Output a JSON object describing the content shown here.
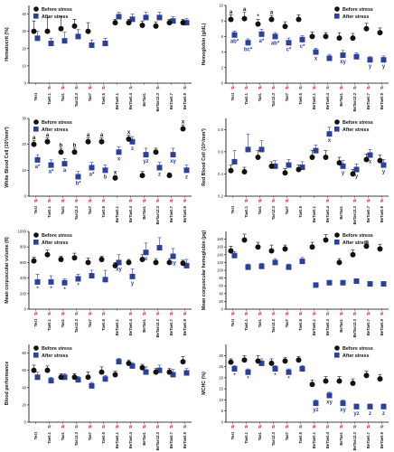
{
  "legend": {
    "before": "Before stress",
    "after": "After stress"
  },
  "colors": {
    "before": "#111111",
    "after": "#2b3f9c",
    "hash": "#e5292e"
  },
  "chart_data": [
    {
      "type": "scatter",
      "ylabel": "Hematocrit (%)",
      "categories": [
        "Test",
        "Tae0.1",
        "Tae1",
        "Tae12.3",
        "Tae7",
        "Tae0.5",
        "BeTae0.1",
        "BeTae0.4",
        "BeTae1",
        "BeTae12.3",
        "BeTae0.7",
        "BeTae0.9"
      ],
      "ylim": [
        0,
        45
      ],
      "yticks": [
        0,
        10,
        20,
        30,
        40
      ],
      "series": [
        {
          "name": "Before stress",
          "values": [
            30,
            30,
            31.5,
            33,
            30,
            null,
            35,
            35,
            33.5,
            33,
            35,
            35
          ],
          "err": [
            6,
            8,
            7,
            4,
            5,
            null,
            2,
            2,
            2.5,
            2.5,
            2,
            2
          ]
        },
        {
          "name": "After stress",
          "values": [
            26,
            23,
            24.5,
            27,
            22,
            23,
            38.5,
            37,
            38,
            38,
            36,
            35
          ],
          "err": [
            4,
            3,
            5,
            4,
            3,
            3,
            2.5,
            3,
            3,
            3,
            2.5,
            2.5
          ]
        }
      ],
      "hash_marks": [
        1,
        2,
        3,
        4,
        5,
        7,
        9,
        11
      ],
      "after_labels": [],
      "before_labels": []
    },
    {
      "type": "scatter",
      "ylabel": "Hemoglobin (g/dL)",
      "categories": [
        "Test",
        "Tae0.1",
        "Tae1",
        "Tae12.3",
        "Tae7",
        "Tae0.5",
        "BeTae0.1",
        "BeTae0.4",
        "BeTae1",
        "BeTae12.3",
        "BeTae0.7",
        "BeTae0.9"
      ],
      "ylim": [
        0,
        10
      ],
      "yticks": [
        0,
        2,
        4,
        6,
        8,
        10
      ],
      "series": [
        {
          "name": "Before stress",
          "values": [
            8.2,
            8.3,
            7.6,
            8.2,
            7.3,
            8.2,
            6,
            6,
            5.8,
            5.8,
            7,
            6.5
          ],
          "err": [
            0.6,
            0.8,
            0.6,
            0.5,
            0.6,
            0.6,
            0.6,
            0.5,
            0.7,
            0.6,
            0.7,
            0.6
          ]
        },
        {
          "name": "After stress",
          "values": [
            6.2,
            5.2,
            6.3,
            6,
            5.2,
            5.6,
            4,
            3.2,
            3.6,
            3.4,
            3,
            3
          ],
          "err": [
            0.5,
            0.5,
            0.6,
            0.5,
            0.6,
            0.5,
            0.5,
            0.5,
            0.6,
            0.5,
            0.4,
            0.5
          ]
        }
      ],
      "hash_marks": [
        0,
        1,
        2,
        3,
        4,
        5,
        6,
        7,
        8,
        9,
        10,
        11
      ],
      "after_labels": [
        {
          "i": 0,
          "text": "ab*"
        },
        {
          "i": 1,
          "text": "bc*"
        },
        {
          "i": 2,
          "text": "a*"
        },
        {
          "i": 3,
          "text": "ab*"
        },
        {
          "i": 4,
          "text": "c*"
        },
        {
          "i": 5,
          "text": "c*"
        },
        {
          "i": 6,
          "text": "x"
        },
        {
          "i": 8,
          "text": "xy"
        },
        {
          "i": 10,
          "text": "y"
        },
        {
          "i": 11,
          "text": "y"
        }
      ],
      "before_labels": [
        {
          "i": 0,
          "text": "a"
        },
        {
          "i": 1,
          "text": "a"
        },
        {
          "i": 2,
          "text": "*"
        },
        {
          "i": 3,
          "text": "a"
        }
      ]
    },
    {
      "type": "scatter",
      "ylabel": "White Blood Cell (10³/mm³)",
      "categories": [
        "Test",
        "Tae0.1",
        "Tae1",
        "Tae12.3",
        "Tae7",
        "Tae0.5",
        "BeTae0.1",
        "BeTae0.4",
        "BeTae1",
        "BeTae12.3",
        "BeTae0.7",
        "BeTae0.9"
      ],
      "ylim": [
        0,
        30
      ],
      "yticks": [
        0,
        10,
        20,
        30
      ],
      "series": [
        {
          "name": "Before stress",
          "values": [
            20,
            21,
            17,
            17,
            21,
            21,
            7,
            22,
            8,
            17,
            8,
            26
          ],
          "err": [
            1.5,
            1.5,
            1.5,
            1.5,
            1.5,
            1.5,
            1,
            1.5,
            1.5,
            1.5,
            1,
            1.5
          ]
        },
        {
          "name": "After stress",
          "values": [
            14,
            12,
            12.5,
            7.5,
            11,
            10,
            17,
            21,
            16,
            11,
            16,
            10
          ],
          "err": [
            2,
            2,
            2,
            2,
            2,
            2,
            2,
            2,
            2.5,
            2,
            2.5,
            2
          ]
        }
      ],
      "hash_marks": [
        0,
        1,
        2,
        3,
        4,
        5,
        7,
        8,
        9,
        10,
        11
      ],
      "after_labels": [
        {
          "i": 0,
          "text": "a*"
        },
        {
          "i": 1,
          "text": "a*"
        },
        {
          "i": 2,
          "text": "a"
        },
        {
          "i": 3,
          "text": "b*"
        },
        {
          "i": 4,
          "text": "a*"
        },
        {
          "i": 5,
          "text": "b"
        },
        {
          "i": 6,
          "text": "x"
        },
        {
          "i": 7,
          "text": "z"
        },
        {
          "i": 8,
          "text": "yz"
        },
        {
          "i": 9,
          "text": "z"
        },
        {
          "i": 10,
          "text": "xy"
        },
        {
          "i": 11,
          "text": "z"
        }
      ],
      "before_labels": [
        {
          "i": 0,
          "text": "a"
        },
        {
          "i": 1,
          "text": "a"
        },
        {
          "i": 2,
          "text": "b"
        },
        {
          "i": 3,
          "text": "b"
        },
        {
          "i": 4,
          "text": "a"
        },
        {
          "i": 5,
          "text": "a"
        },
        {
          "i": 6,
          "text": "x"
        },
        {
          "i": 7,
          "text": "x"
        },
        {
          "i": 11,
          "text": "x"
        }
      ]
    },
    {
      "type": "scatter",
      "ylabel": "Red Blood Cell (10⁶/mm³)",
      "categories": [
        "Test",
        "Tae0.1",
        "Tae1",
        "Tae12.3",
        "Tae7",
        "Tae0.5",
        "BeTae0.1",
        "BeTae0.4",
        "BeTae1",
        "BeTae12.3",
        "BeTae0.7",
        "BeTae0.9"
      ],
      "ylim": [
        0.2,
        0.9
      ],
      "yticks": [
        0.2,
        0.4,
        0.6,
        0.8
      ],
      "series": [
        {
          "name": "Before stress",
          "values": [
            0.43,
            0.42,
            0.55,
            0.47,
            0.41,
            0.44,
            0.55,
            0.55,
            0.5,
            0.4,
            0.53,
            0.52
          ],
          "err": [
            0.05,
            0.04,
            0.06,
            0.04,
            0.04,
            0.04,
            0.06,
            0.06,
            0.05,
            0.04,
            0.05,
            0.05
          ]
        },
        {
          "name": "After stress",
          "values": [
            0.51,
            0.62,
            0.62,
            0.47,
            0.48,
            0.46,
            0.61,
            0.76,
            0.47,
            0.44,
            0.57,
            0.48
          ],
          "err": [
            0.1,
            0.14,
            0.08,
            0.05,
            0.05,
            0.05,
            0.05,
            0.06,
            0.05,
            0.05,
            0.05,
            0.05
          ]
        }
      ],
      "hash_marks": [
        1,
        2,
        3,
        4,
        7,
        9,
        10,
        11
      ],
      "after_labels": [
        {
          "i": 7,
          "text": "x"
        },
        {
          "i": 8,
          "text": "y"
        },
        {
          "i": 9,
          "text": "y"
        },
        {
          "i": 10,
          "text": "x"
        },
        {
          "i": 11,
          "text": "y"
        }
      ],
      "before_labels": []
    },
    {
      "type": "scatter",
      "ylabel": "Mean corpuscular volume (fl)",
      "categories": [
        "Test",
        "Tae0.1",
        "Tae1",
        "Tae12.3",
        "Tae7",
        "Tae0.5",
        "BeTae0.1",
        "BeTae0.4",
        "BeTae1",
        "BeTae12.3",
        "BeTae0.7",
        "BeTae0.9"
      ],
      "ylim": [
        0,
        1000
      ],
      "yticks": [
        0,
        200,
        400,
        600,
        800,
        1000
      ],
      "series": [
        {
          "name": "Before stress",
          "values": [
            620,
            700,
            640,
            660,
            600,
            640,
            560,
            600,
            640,
            600,
            600,
            590
          ],
          "err": [
            50,
            60,
            40,
            60,
            60,
            40,
            40,
            40,
            60,
            50,
            50,
            40
          ]
        },
        {
          "name": "After stress",
          "values": [
            350,
            350,
            340,
            390,
            430,
            380,
            600,
            420,
            730,
            790,
            680,
            560
          ],
          "err": [
            100,
            80,
            50,
            60,
            70,
            120,
            100,
            100,
            120,
            130,
            100,
            80
          ]
        }
      ],
      "hash_marks": [
        0,
        1,
        2,
        3,
        4,
        5,
        7,
        8,
        9,
        10,
        11
      ],
      "after_labels": [
        {
          "i": 0,
          "text": "*"
        },
        {
          "i": 1,
          "text": "*"
        },
        {
          "i": 2,
          "text": "*"
        },
        {
          "i": 3,
          "text": "*"
        },
        {
          "i": 6,
          "text": "xy"
        },
        {
          "i": 7,
          "text": "y"
        },
        {
          "i": 8,
          "text": "x"
        },
        {
          "i": 10,
          "text": "xy"
        }
      ],
      "before_labels": []
    },
    {
      "type": "scatter",
      "ylabel": "Mean corpuscular hemoglobin (pg)",
      "categories": [
        "Test",
        "Tae0.1",
        "Tae1",
        "Tae12.3",
        "Tae7",
        "Tae0.5",
        "BeTae0.1",
        "BeTae0.4",
        "BeTae1",
        "BeTae12.3",
        "BeTae0.7",
        "BeTae0.9"
      ],
      "ylim": [
        0,
        200
      ],
      "yticks": [
        0,
        20,
        40,
        60,
        80,
        100,
        120,
        140,
        160,
        180
      ],
      "series": [
        {
          "name": "Before stress",
          "values": [
            150,
            178,
            160,
            150,
            155,
            null,
            160,
            178,
            120,
            140,
            162,
            155
          ],
          "err": [
            12,
            15,
            12,
            15,
            10,
            null,
            12,
            14,
            10,
            12,
            14,
            12
          ]
        },
        {
          "name": "After stress",
          "values": [
            138,
            108,
            110,
            120,
            108,
            123,
            62,
            68,
            68,
            72,
            65,
            65
          ],
          "err": [
            10,
            8,
            8,
            10,
            8,
            10,
            5,
            6,
            5,
            6,
            5,
            5
          ]
        }
      ],
      "hash_marks": [
        0,
        1,
        2,
        3,
        4,
        5,
        6,
        7,
        8,
        9,
        10,
        11
      ],
      "after_labels": [],
      "before_labels": []
    },
    {
      "type": "scatter",
      "ylabel": "Blood performance",
      "categories": [
        "Test",
        "Tae0.1",
        "Tae1",
        "Tae12.3",
        "Tae7",
        "Tae0.5",
        "BeTae0.1",
        "BeTae0.4",
        "BeTae1",
        "BeTae12.3",
        "BeTae0.7",
        "BeTae0.9"
      ],
      "ylim": [
        0,
        90
      ],
      "yticks": [
        0,
        20,
        40,
        60,
        80
      ],
      "series": [
        {
          "name": "Before stress",
          "values": [
            60,
            60,
            52,
            52,
            52,
            58,
            55,
            68,
            63,
            58,
            58,
            70
          ],
          "err": [
            6,
            5,
            4,
            4,
            6,
            6,
            4,
            4,
            4,
            4,
            4,
            6
          ]
        },
        {
          "name": "After stress",
          "values": [
            52,
            48,
            52,
            49,
            42,
            50,
            70,
            65,
            58,
            60,
            55,
            57
          ],
          "err": [
            6,
            4,
            4,
            4,
            4,
            4,
            4,
            4,
            6,
            6,
            6,
            5
          ]
        }
      ],
      "hash_marks": [
        1,
        2,
        3,
        4,
        5,
        6,
        7,
        8,
        9,
        10,
        11
      ],
      "after_labels": [],
      "before_labels": []
    },
    {
      "type": "scatter",
      "ylabel": "MCHC (%)",
      "categories": [
        "Test",
        "Tae0.1",
        "Tae1",
        "Tae12.3",
        "Tae7",
        "Tae0.5",
        "BeTae0.1",
        "BeTae0.4",
        "BeTae1",
        "BeTae12.3",
        "BeTae0.7",
        "BeTae0.9"
      ],
      "ylim": [
        0,
        35
      ],
      "yticks": [
        0,
        5,
        10,
        15,
        20,
        25,
        30
      ],
      "series": [
        {
          "name": "Before stress",
          "values": [
            27,
            28,
            27.5,
            26.5,
            27.5,
            28,
            17,
            18.5,
            18.5,
            17.5,
            21,
            19.5
          ],
          "err": [
            1.5,
            2,
            2.5,
            2,
            1.5,
            1.5,
            2,
            2,
            2,
            2,
            2,
            2
          ]
        },
        {
          "name": "After stress",
          "values": [
            24,
            22.5,
            26.5,
            24,
            22.5,
            24,
            8.5,
            12,
            8.5,
            7,
            7,
            7
          ],
          "err": [
            1.5,
            1.5,
            2,
            1.5,
            1.5,
            1.5,
            1.5,
            1.5,
            1.5,
            1.2,
            1.2,
            1.2
          ]
        }
      ],
      "hash_marks": [
        0,
        1,
        2,
        3,
        4,
        5,
        6,
        7,
        8,
        9,
        10,
        11
      ],
      "after_labels": [
        {
          "i": 0,
          "text": "*"
        },
        {
          "i": 1,
          "text": "*"
        },
        {
          "i": 3,
          "text": "*"
        },
        {
          "i": 4,
          "text": "*"
        },
        {
          "i": 6,
          "text": "yz"
        },
        {
          "i": 7,
          "text": "xy"
        },
        {
          "i": 8,
          "text": "xy"
        },
        {
          "i": 9,
          "text": "yz"
        },
        {
          "i": 10,
          "text": "z"
        },
        {
          "i": 11,
          "text": "z"
        }
      ],
      "before_labels": []
    }
  ]
}
